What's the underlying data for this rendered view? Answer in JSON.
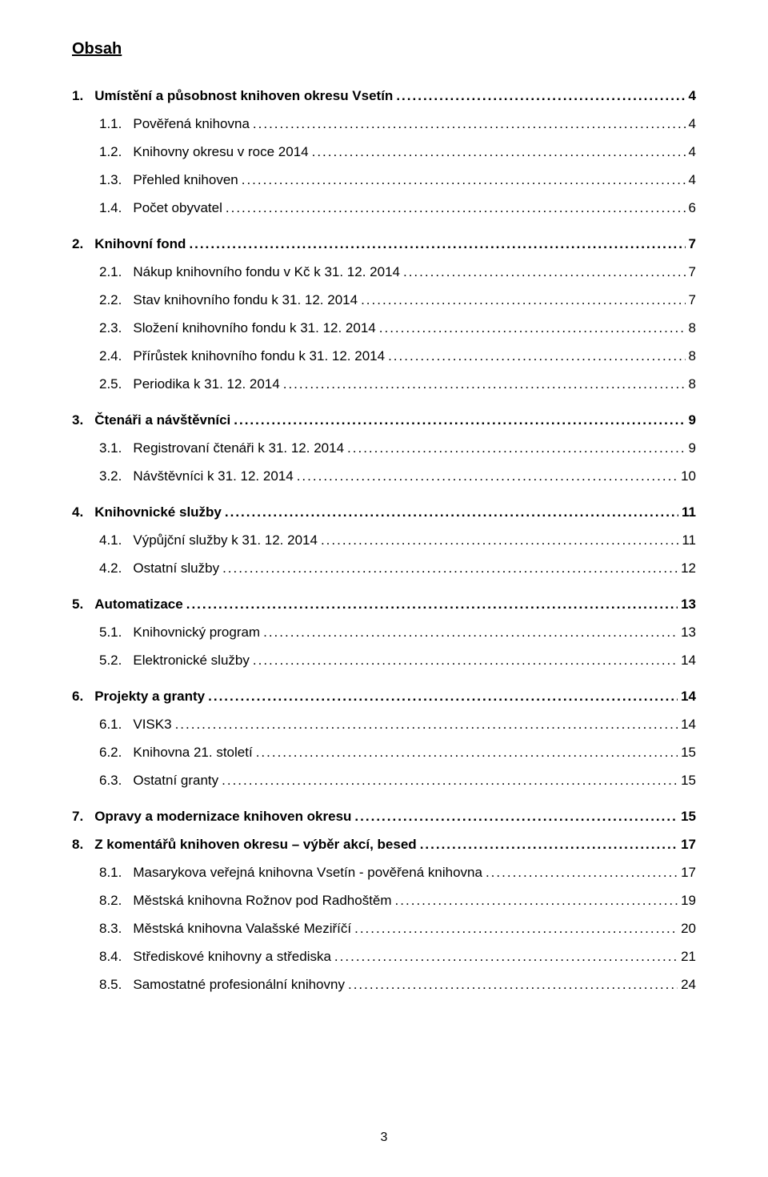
{
  "title": "Obsah",
  "page_number": "3",
  "colors": {
    "background": "#ffffff",
    "text": "#000000"
  },
  "fonts": {
    "family": "Arial",
    "title_size_pt": 15,
    "body_size_pt": 12
  },
  "toc": [
    {
      "level": 1,
      "num": "1.",
      "label": "Umístění a působnost knihoven okresu Vsetín",
      "page": "4"
    },
    {
      "level": 2,
      "num": "1.1.",
      "label": "Pověřená knihovna",
      "page": "4"
    },
    {
      "level": 2,
      "num": "1.2.",
      "label": "Knihovny okresu v roce 2014",
      "page": "4"
    },
    {
      "level": 2,
      "num": "1.3.",
      "label": "Přehled knihoven",
      "page": "4"
    },
    {
      "level": 2,
      "num": "1.4.",
      "label": "Počet obyvatel",
      "page": "6"
    },
    {
      "level": 1,
      "num": "2.",
      "label": "Knihovní fond",
      "page": "7"
    },
    {
      "level": 2,
      "num": "2.1.",
      "label": "Nákup knihovního fondu v Kč k 31. 12. 2014",
      "page": "7"
    },
    {
      "level": 2,
      "num": "2.2.",
      "label": "Stav knihovního fondu k 31. 12. 2014",
      "page": "7"
    },
    {
      "level": 2,
      "num": "2.3.",
      "label": "Složení knihovního fondu k 31. 12. 2014",
      "page": "8"
    },
    {
      "level": 2,
      "num": "2.4.",
      "label": "Přírůstek knihovního fondu k 31. 12. 2014",
      "page": "8"
    },
    {
      "level": 2,
      "num": "2.5.",
      "label": "Periodika k 31. 12. 2014",
      "page": "8"
    },
    {
      "level": 1,
      "num": "3.",
      "label": "Čtenáři a návštěvníci",
      "page": "9"
    },
    {
      "level": 2,
      "num": "3.1.",
      "label": "Registrovaní čtenáři k 31. 12. 2014",
      "page": "9"
    },
    {
      "level": 2,
      "num": "3.2.",
      "label": "Návštěvníci k 31. 12. 2014",
      "page": "10"
    },
    {
      "level": 1,
      "num": "4.",
      "label": "Knihovnické služby",
      "page": "11"
    },
    {
      "level": 2,
      "num": "4.1.",
      "label": "Výpůjční služby k 31. 12. 2014",
      "page": "11"
    },
    {
      "level": 2,
      "num": "4.2.",
      "label": "Ostatní služby",
      "page": "12"
    },
    {
      "level": 1,
      "num": "5.",
      "label": "Automatizace",
      "page": "13"
    },
    {
      "level": 2,
      "num": "5.1.",
      "label": "Knihovnický program",
      "page": "13"
    },
    {
      "level": 2,
      "num": "5.2.",
      "label": "Elektronické služby",
      "page": "14"
    },
    {
      "level": 1,
      "num": "6.",
      "label": "Projekty a granty",
      "page": "14"
    },
    {
      "level": 2,
      "num": "6.1.",
      "label": "VISK3",
      "page": "14"
    },
    {
      "level": 2,
      "num": "6.2.",
      "label": "Knihovna 21. století",
      "page": "15"
    },
    {
      "level": 2,
      "num": "6.3.",
      "label": "Ostatní granty",
      "page": "15"
    },
    {
      "level": 1,
      "num": "7.",
      "label": "Opravy a modernizace knihoven okresu",
      "page": "15"
    },
    {
      "level": 1,
      "num": "8.",
      "label": "Z komentářů knihoven okresu – výběr akcí, besed",
      "page": "17"
    },
    {
      "level": 2,
      "num": "8.1.",
      "label": "Masarykova veřejná knihovna Vsetín - pověřená knihovna",
      "page": "17"
    },
    {
      "level": 2,
      "num": "8.2.",
      "label": "Městská knihovna Rožnov pod Radhoštěm",
      "page": "19"
    },
    {
      "level": 2,
      "num": "8.3.",
      "label": "Městská knihovna Valašské Meziříčí",
      "page": "20"
    },
    {
      "level": 2,
      "num": "8.4.",
      "label": "Střediskové knihovny a střediska",
      "page": "21"
    },
    {
      "level": 2,
      "num": "8.5.",
      "label": "Samostatné profesionální knihovny",
      "page": "24"
    }
  ]
}
